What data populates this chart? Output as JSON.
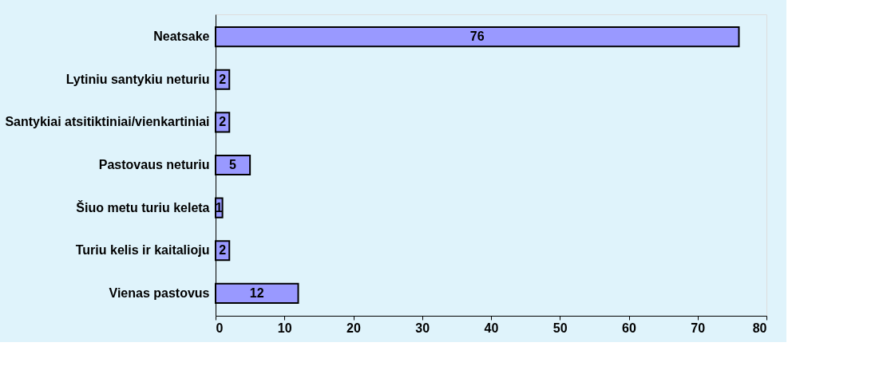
{
  "chart_data": {
    "type": "bar",
    "orientation": "horizontal",
    "categories": [
      "Neatsake",
      "Lytiniu santykiu neturiu",
      "Santykiai atsitiktiniai/vienkartiniai",
      "Pastovaus neturiu",
      "Šiuo metu turiu keleta",
      "Turiu kelis ir kaitalioju",
      "Vienas pastovus"
    ],
    "values": [
      76,
      2,
      2,
      5,
      1,
      2,
      12
    ],
    "color": "#9999ff",
    "xlim": [
      0,
      80
    ],
    "xticks": [
      0,
      10,
      20,
      30,
      40,
      50,
      60,
      70,
      80
    ],
    "grid": false,
    "data_labels": true
  }
}
